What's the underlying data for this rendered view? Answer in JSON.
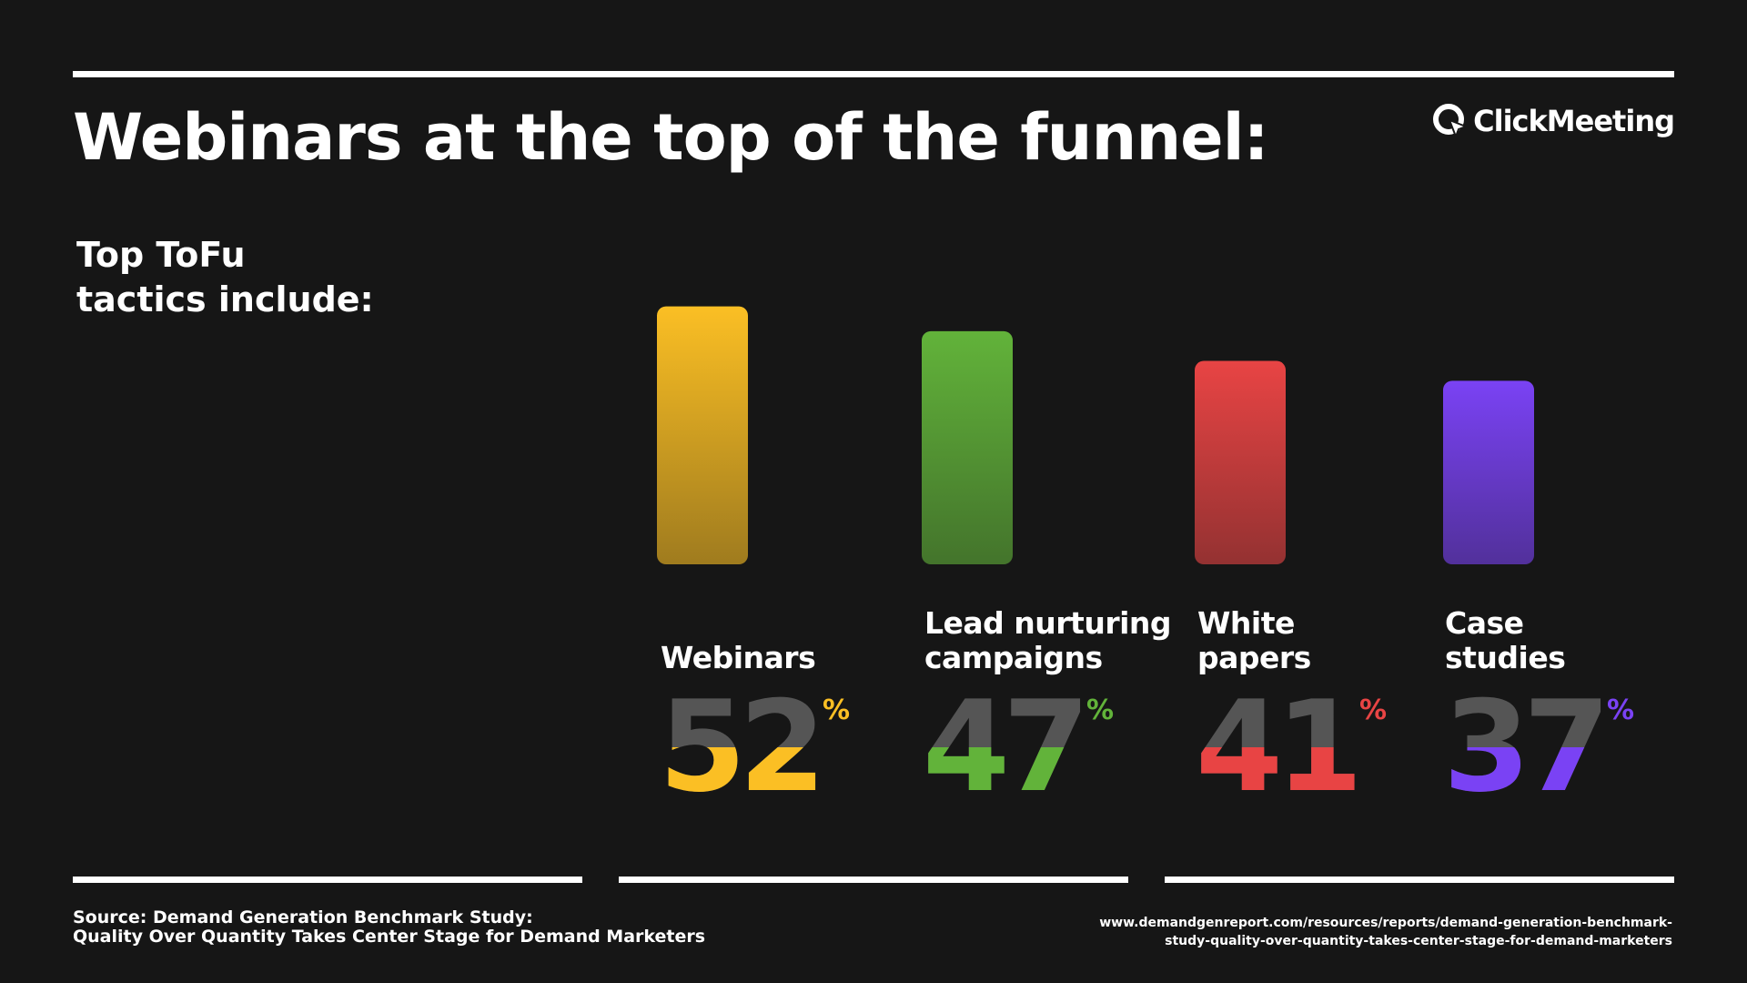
{
  "title": "Webinars at the top of the funnel:",
  "logo": {
    "text": "ClickMeeting",
    "icon": "clickmeeting-logo-icon"
  },
  "subtitle": [
    "Top ToFu",
    "tactics include:"
  ],
  "chart_data": {
    "type": "bar",
    "categories": [
      "Webinars",
      "Lead nurturing campaigns",
      "White papers",
      "Case studies"
    ],
    "category_lines": [
      [
        "Webinars"
      ],
      [
        "Lead nurturing",
        "campaigns"
      ],
      [
        "White",
        "papers"
      ],
      [
        "Case",
        "studies"
      ]
    ],
    "values": [
      52,
      47,
      41,
      37
    ],
    "unit": "%",
    "colors": [
      "#FBBF24",
      "#62B33A",
      "#E84444",
      "#7A42F4"
    ]
  },
  "source": [
    "Source: Demand Generation Benchmark Study:",
    "Quality Over Quantity Takes Center Stage for Demand Marketers"
  ],
  "url": [
    "www.demandgenreport.com/resources/reports/demand-generation-benchmark-",
    "study-quality-over-quantity-takes-center-stage-for-demand-marketers"
  ]
}
